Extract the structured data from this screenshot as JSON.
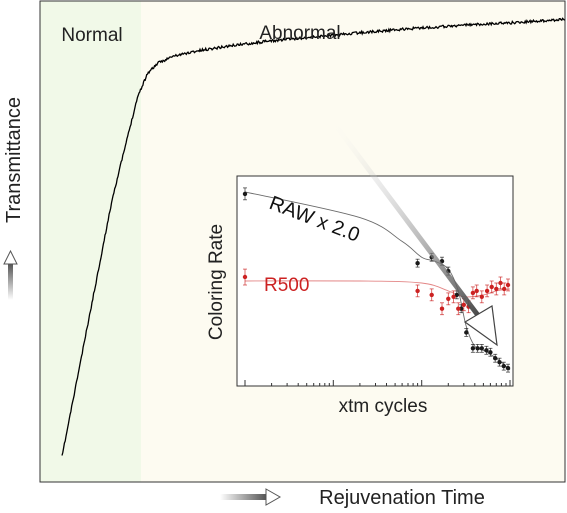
{
  "chart_data": [
    {
      "type": "line",
      "xlabel": "Rejuvenation Time",
      "ylabel": "Transmittance",
      "regions": [
        {
          "label": "Normal",
          "x_start": 0,
          "x_end": 0.19
        },
        {
          "label": "Abnormal",
          "x_start": 0.19,
          "x_end": 1.0
        }
      ],
      "grid": false,
      "ticks": false,
      "series": [
        {
          "x": [
            0,
            0.05,
            0.1,
            0.15,
            0.17,
            0.19,
            0.22,
            0.26,
            0.3,
            0.35,
            0.4,
            0.45,
            0.5,
            0.55,
            0.6,
            0.65,
            0.7,
            0.75,
            0.8,
            0.85,
            0.9,
            0.95,
            1.0
          ],
          "values": [
            0.02,
            0.3,
            0.58,
            0.8,
            0.8517,
            0.8734,
            0.8884,
            0.8984,
            0.9059,
            0.9138,
            0.9201,
            0.9259,
            0.9305,
            0.9355,
            0.9405,
            0.9451,
            0.9493,
            0.9526,
            0.9564,
            0.9593,
            0.9618,
            0.9655,
            0.9693
          ],
          "color": "#000000"
        }
      ]
    },
    {
      "type": "scatter",
      "xlabel": "xtm cycles",
      "ylabel": "Coloring Rate",
      "x_scale": "log",
      "xlim": [
        1,
        1000
      ],
      "ylim": [
        0,
        1
      ],
      "grid": false,
      "series": [
        {
          "name": "RAW x 2.0",
          "color": "#1a1a1a",
          "x": [
            1,
            90,
            130,
            170,
            200,
            250,
            280,
            320,
            380,
            430,
            480,
            540,
            600,
            680,
            760,
            850,
            950
          ],
          "values": [
            0.94,
            0.59,
            0.62,
            0.6,
            0.55,
            0.43,
            0.36,
            0.24,
            0.16,
            0.16,
            0.16,
            0.15,
            0.14,
            0.11,
            0.09,
            0.07,
            0.06
          ],
          "error": [
            0.03,
            0.02,
            0.02,
            0.02,
            0.02,
            0.02,
            0.02,
            0.02,
            0.02,
            0.02,
            0.02,
            0.02,
            0.02,
            0.02,
            0.02,
            0.02,
            0.02
          ]
        },
        {
          "name": "R500",
          "color": "#cc2222",
          "x": [
            1,
            90,
            130,
            170,
            200,
            230,
            260,
            300,
            340,
            380,
            420,
            480,
            550,
            620,
            700,
            780,
            860,
            950
          ],
          "values": [
            0.52,
            0.45,
            0.43,
            0.36,
            0.41,
            0.42,
            0.36,
            0.38,
            0.37,
            0.44,
            0.45,
            0.42,
            0.45,
            0.47,
            0.46,
            0.49,
            0.46,
            0.48
          ],
          "error": [
            0.04,
            0.03,
            0.03,
            0.03,
            0.03,
            0.03,
            0.03,
            0.03,
            0.03,
            0.03,
            0.03,
            0.03,
            0.03,
            0.03,
            0.03,
            0.03,
            0.03,
            0.03
          ]
        }
      ],
      "fit_lines": [
        {
          "series": "RAW x 2.0",
          "x": [
            1,
            20,
            60,
            100,
            140,
            200,
            260,
            320,
            400,
            500,
            650,
            800,
            1000
          ],
          "values": [
            0.95,
            0.82,
            0.7,
            0.62,
            0.6,
            0.56,
            0.45,
            0.27,
            0.17,
            0.15,
            0.12,
            0.09,
            0.05
          ]
        },
        {
          "series": "R500",
          "x": [
            1,
            20,
            100,
            200,
            300,
            500,
            700,
            1000
          ],
          "values": [
            0.5,
            0.5,
            0.49,
            0.45,
            0.42,
            0.43,
            0.45,
            0.46
          ]
        }
      ]
    }
  ]
}
